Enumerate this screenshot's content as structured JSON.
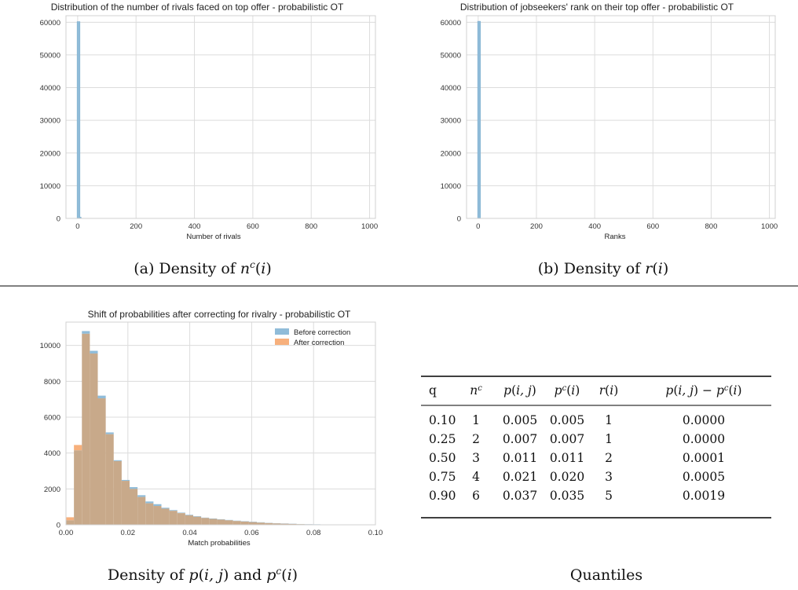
{
  "colors": {
    "before": "#90bcd9",
    "after": "#f7b07c",
    "overlap": "#c8a98a",
    "grid": "#dcdcdc"
  },
  "panel_a": {
    "caption": "(a) Density of n^c(i)"
  },
  "panel_b": {
    "caption": "(b) Density of r(i)"
  },
  "panel_c": {
    "caption": "Density of p(i, j) and p^c(i)"
  },
  "table": {
    "caption": "Quantiles",
    "headers": [
      "q",
      "n^c",
      "p(i, j)",
      "p^c(i)",
      "r(i)",
      "p(i, j) − p^c(i)"
    ],
    "rows": [
      [
        "0.10",
        "1",
        "0.005",
        "0.005",
        "1",
        "0.0000"
      ],
      [
        "0.25",
        "2",
        "0.007",
        "0.007",
        "1",
        "0.0000"
      ],
      [
        "0.50",
        "3",
        "0.011",
        "0.011",
        "2",
        "0.0001"
      ],
      [
        "0.75",
        "4",
        "0.021",
        "0.020",
        "3",
        "0.0005"
      ],
      [
        "0.90",
        "6",
        "0.037",
        "0.035",
        "5",
        "0.0019"
      ]
    ]
  },
  "chart_data": [
    {
      "type": "bar",
      "title": "Distribution of the number of rivals faced on top offer - probabilistic OT",
      "xlabel": "Number of rivals",
      "ylabel": "",
      "xlim": [
        -40,
        1020
      ],
      "ylim": [
        0,
        62000
      ],
      "xticks": [
        0,
        200,
        400,
        600,
        800,
        1000
      ],
      "yticks": [
        0,
        10000,
        20000,
        30000,
        40000,
        50000,
        60000
      ],
      "grid": true,
      "bins": [
        {
          "x0": -2,
          "x1": 8,
          "value": 60200
        },
        {
          "x0": 8,
          "x1": 12,
          "value": 400
        }
      ]
    },
    {
      "type": "bar",
      "title": "Distribution of jobseekers' rank on their top offer - probabilistic OT",
      "xlabel": "Ranks",
      "ylabel": "",
      "xlim": [
        -40,
        1020
      ],
      "ylim": [
        0,
        62000
      ],
      "xticks": [
        0,
        200,
        400,
        600,
        800,
        1000
      ],
      "yticks": [
        0,
        10000,
        20000,
        30000,
        40000,
        50000,
        60000
      ],
      "grid": true,
      "bins": [
        {
          "x0": -2,
          "x1": 8,
          "value": 60300
        }
      ]
    },
    {
      "type": "bar",
      "title": "Shift of probabilities after correcting for rivalry - probabilistic OT",
      "xlabel": "Match probabilities",
      "ylabel": "",
      "xlim": [
        0.0,
        0.1
      ],
      "ylim": [
        0,
        11300
      ],
      "xticks": [
        0.0,
        0.02,
        0.04,
        0.06,
        0.08,
        0.1
      ],
      "xticklabels": [
        "0.00",
        "0.02",
        "0.04",
        "0.06",
        "0.08",
        "0.10"
      ],
      "yticks": [
        0,
        2000,
        4000,
        6000,
        8000,
        10000
      ],
      "grid": true,
      "legend": "top-right",
      "bin_start": 0.0,
      "bin_width": 0.00257,
      "series": [
        {
          "name": "Before correction",
          "values": [
            250,
            4150,
            10800,
            9700,
            7200,
            5150,
            3600,
            2500,
            2100,
            1650,
            1300,
            1150,
            950,
            820,
            680,
            560,
            480,
            400,
            350,
            310,
            270,
            230,
            200,
            170,
            140,
            110,
            90,
            75,
            60,
            45,
            35,
            28,
            20,
            12,
            8,
            5,
            3,
            2
          ]
        },
        {
          "name": "After correction",
          "values": [
            420,
            4450,
            10650,
            9550,
            7050,
            5050,
            3550,
            2450,
            2000,
            1550,
            1200,
            1050,
            900,
            780,
            650,
            530,
            450,
            380,
            330,
            290,
            250,
            210,
            180,
            150,
            120,
            95,
            75,
            60,
            48,
            36,
            26,
            20,
            14,
            8,
            5,
            3,
            2,
            1
          ]
        }
      ]
    }
  ]
}
